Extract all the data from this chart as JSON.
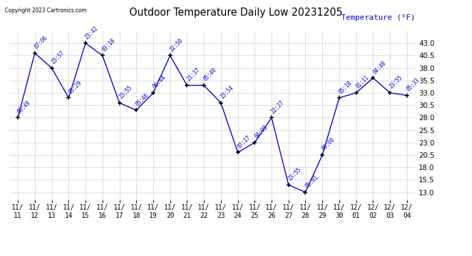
{
  "title": "Outdoor Temperature Daily Low 20231205",
  "ylabel": "Temperature (°F)",
  "background_color": "#ffffff",
  "grid_color": "#bbbbbb",
  "line_color": "#0000cc",
  "point_color": "#000000",
  "label_color": "#0000cc",
  "copyright_text": "Copyright 2023 Cartronics.com",
  "ylim_min": 11.5,
  "ylim_max": 45.5,
  "yticks": [
    13.0,
    15.5,
    18.0,
    20.5,
    23.0,
    25.5,
    28.0,
    30.5,
    33.0,
    35.5,
    38.0,
    40.5,
    43.0
  ],
  "points": [
    {
      "date": "11/11",
      "temp": 28.0,
      "time": "06:49"
    },
    {
      "date": "11/12",
      "temp": 41.0,
      "time": "07:06"
    },
    {
      "date": "11/13",
      "temp": 38.0,
      "time": "23:57"
    },
    {
      "date": "11/14",
      "temp": 32.0,
      "time": "05:29"
    },
    {
      "date": "11/15",
      "temp": 43.0,
      "time": "23:42"
    },
    {
      "date": "11/16",
      "temp": 40.5,
      "time": "03:18"
    },
    {
      "date": "11/17",
      "temp": 31.0,
      "time": "23:55"
    },
    {
      "date": "11/18",
      "temp": 29.5,
      "time": "05:46"
    },
    {
      "date": "11/19",
      "temp": 33.0,
      "time": "06:44"
    },
    {
      "date": "11/20",
      "temp": 40.5,
      "time": "22:50"
    },
    {
      "date": "11/21",
      "temp": 34.5,
      "time": "21:37"
    },
    {
      "date": "11/22",
      "temp": 34.5,
      "time": "05:40"
    },
    {
      "date": "11/23",
      "temp": 31.0,
      "time": "23:54"
    },
    {
      "date": "11/24",
      "temp": 21.0,
      "time": "07:17"
    },
    {
      "date": "11/25",
      "temp": 23.0,
      "time": "04:08"
    },
    {
      "date": "11/26",
      "temp": 28.0,
      "time": "22:27"
    },
    {
      "date": "11/27",
      "temp": 14.5,
      "time": "23:55"
    },
    {
      "date": "11/28",
      "temp": 13.0,
      "time": "05:01"
    },
    {
      "date": "11/29",
      "temp": 20.5,
      "time": "00:00"
    },
    {
      "date": "11/30",
      "temp": 32.0,
      "time": "05:18"
    },
    {
      "date": "12/01",
      "temp": 33.0,
      "time": "01:11"
    },
    {
      "date": "12/02",
      "temp": 36.0,
      "time": "04:48"
    },
    {
      "date": "12/03",
      "temp": 33.0,
      "time": "23:55"
    },
    {
      "date": "12/04",
      "temp": 32.5,
      "time": "05:33"
    }
  ]
}
